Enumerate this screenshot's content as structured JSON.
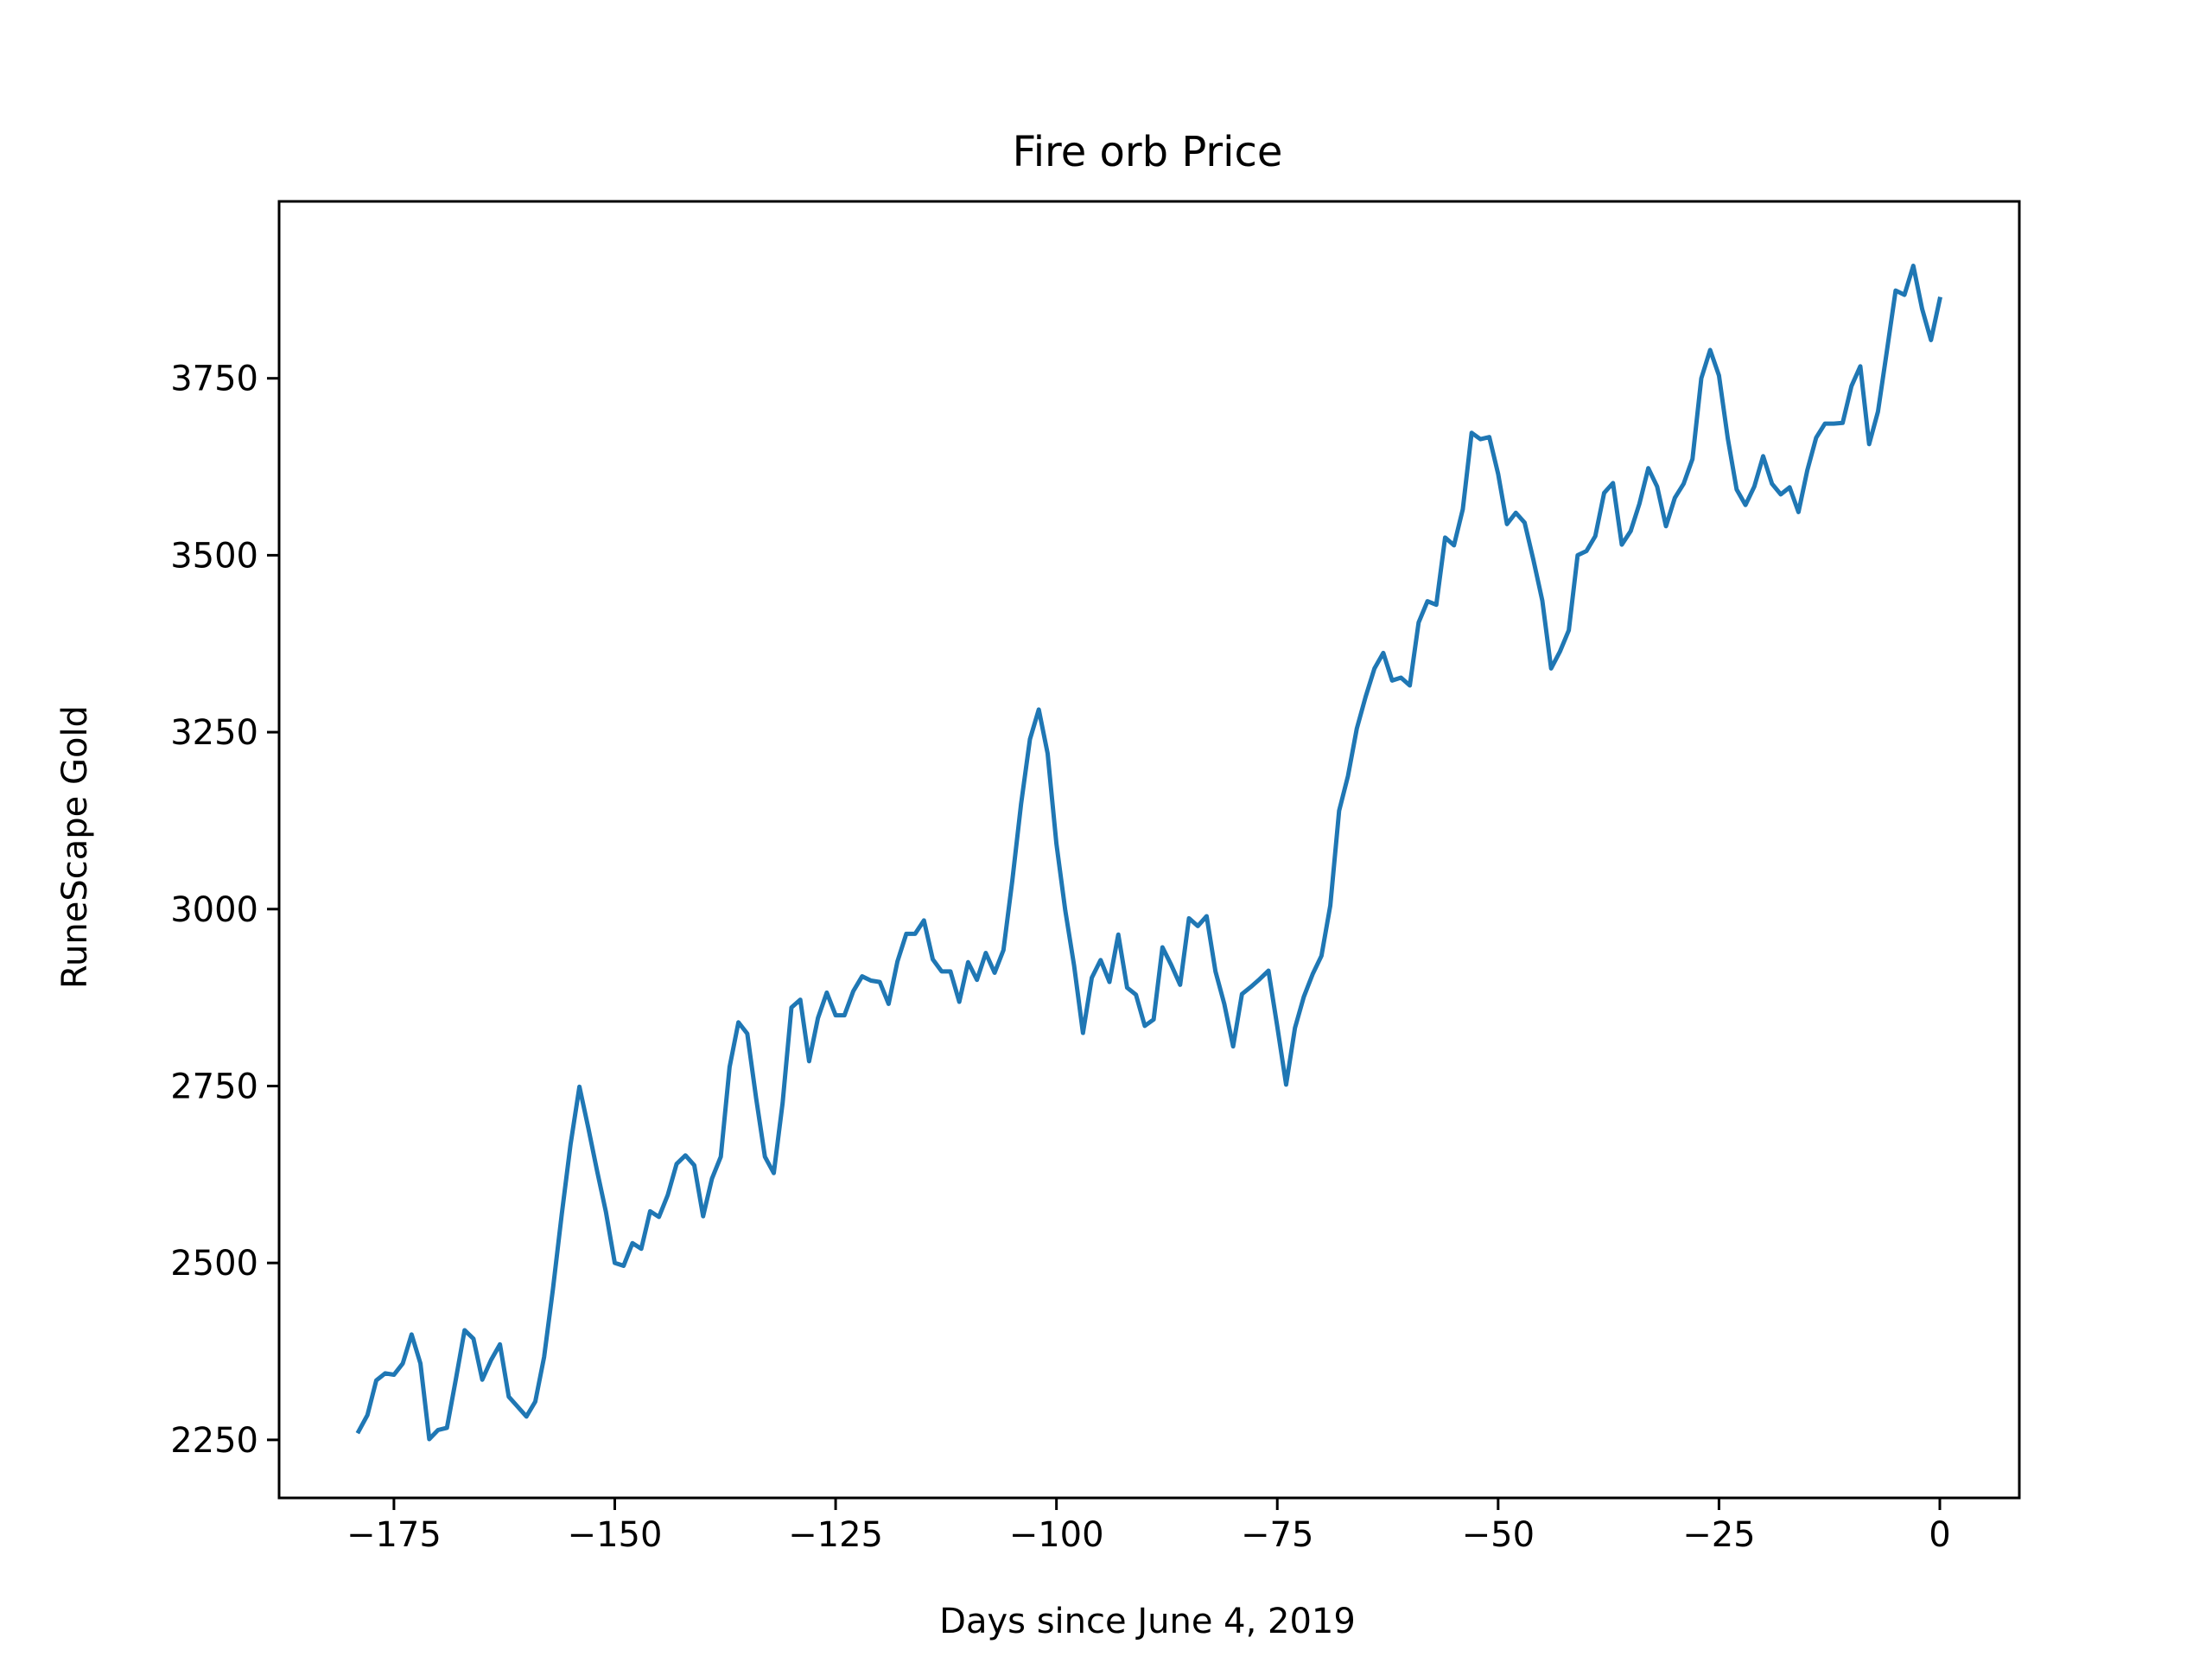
{
  "chart_data": {
    "type": "line",
    "title": "Fire orb Price",
    "xlabel": "Days since June 4, 2019",
    "ylabel": "RuneScape Gold",
    "xlim": [
      -188,
      9
    ],
    "ylim": [
      2168,
      4000
    ],
    "xticks": [
      -175,
      -150,
      -125,
      -100,
      -75,
      -50,
      -25,
      0
    ],
    "xtick_labels": [
      "−175",
      "−150",
      "−125",
      "−100",
      "−75",
      "−50",
      "−25",
      "0"
    ],
    "yticks": [
      2250,
      2500,
      2750,
      3000,
      3250,
      3500,
      3750
    ],
    "ytick_labels": [
      "2250",
      "2500",
      "2750",
      "3000",
      "3250",
      "3500",
      "3750"
    ],
    "grid": false,
    "series": [
      {
        "color": "#1f77b4",
        "x": [
          -179,
          -178,
          -177,
          -176,
          -175,
          -174,
          -173,
          -172,
          -171,
          -170,
          -169,
          -168,
          -167,
          -166,
          -165,
          -164,
          -163,
          -162,
          -161,
          -160,
          -159,
          -158,
          -157,
          -156,
          -155,
          -154,
          -153,
          -152,
          -151,
          -150,
          -149,
          -148,
          -147,
          -146,
          -145,
          -144,
          -143,
          -142,
          -141,
          -140,
          -139,
          -138,
          -137,
          -136,
          -135,
          -134,
          -133,
          -132,
          -131,
          -130,
          -129,
          -128,
          -127,
          -126,
          -125,
          -124,
          -123,
          -122,
          -121,
          -120,
          -119,
          -118,
          -117,
          -116,
          -115,
          -114,
          -113,
          -112,
          -111,
          -110,
          -109,
          -108,
          -107,
          -106,
          -105,
          -104,
          -103,
          -102,
          -101,
          -100,
          -99,
          -98,
          -97,
          -96,
          -95,
          -94,
          -93,
          -92,
          -91,
          -90,
          -89,
          -88,
          -87,
          -86,
          -85,
          -84,
          -83,
          -82,
          -81,
          -80,
          -79,
          -78,
          -77,
          -76,
          -75,
          -74,
          -73,
          -72,
          -71,
          -70,
          -69,
          -68,
          -67,
          -66,
          -65,
          -64,
          -63,
          -62,
          -61,
          -60,
          -59,
          -58,
          -57,
          -56,
          -55,
          -54,
          -53,
          -52,
          -51,
          -50,
          -49,
          -48,
          -47,
          -46,
          -45,
          -44,
          -43,
          -42,
          -41,
          -40,
          -39,
          -38,
          -37,
          -36,
          -35,
          -34,
          -33,
          -32,
          -31,
          -30,
          -29,
          -28,
          -27,
          -26,
          -25,
          -24,
          -23,
          -22,
          -21,
          -20,
          -19,
          -18,
          -17,
          -16,
          -15,
          -14,
          -13,
          -12,
          -11,
          -10,
          -9,
          -8,
          -7,
          -6,
          -5,
          -4,
          -3,
          -2,
          -1,
          0
        ],
        "y": [
          2262,
          2285,
          2334,
          2344,
          2342,
          2358,
          2399,
          2358,
          2251,
          2264,
          2267,
          2335,
          2405,
          2393,
          2335,
          2363,
          2385,
          2311,
          2297,
          2283,
          2304,
          2367,
          2463,
          2569,
          2668,
          2749,
          2691,
          2630,
          2572,
          2500,
          2496,
          2528,
          2520,
          2573,
          2565,
          2596,
          2640,
          2652,
          2638,
          2566,
          2619,
          2650,
          2777,
          2840,
          2824,
          2733,
          2650,
          2627,
          2726,
          2861,
          2872,
          2785,
          2846,
          2882,
          2850,
          2850,
          2884,
          2905,
          2899,
          2897,
          2866,
          2926,
          2965,
          2965,
          2984,
          2929,
          2912,
          2912,
          2869,
          2925,
          2900,
          2938,
          2910,
          2942,
          3040,
          3149,
          3240,
          3282,
          3220,
          3092,
          2998,
          2920,
          2825,
          2903,
          2928,
          2897,
          2964,
          2889,
          2879,
          2835,
          2844,
          2946,
          2921,
          2893,
          2987,
          2976,
          2990,
          2912,
          2866,
          2806,
          2880,
          2890,
          2901,
          2913,
          2834,
          2752,
          2832,
          2876,
          2908,
          2934,
          3005,
          3139,
          3188,
          3255,
          3300,
          3340,
          3362,
          3323,
          3327,
          3316,
          3405,
          3435,
          3430,
          3525,
          3514,
          3565,
          3673,
          3664,
          3667,
          3615,
          3544,
          3560,
          3546,
          3493,
          3436,
          3340,
          3364,
          3394,
          3500,
          3506,
          3527,
          3588,
          3602,
          3515,
          3534,
          3573,
          3623,
          3597,
          3541,
          3581,
          3601,
          3636,
          3750,
          3790,
          3754,
          3665,
          3593,
          3571,
          3597,
          3640,
          3601,
          3586,
          3596,
          3561,
          3620,
          3666,
          3686,
          3686,
          3687,
          3739,
          3767,
          3657,
          3703,
          3788,
          3874,
          3868,
          3909,
          3848,
          3804,
          3862
        ]
      }
    ]
  }
}
